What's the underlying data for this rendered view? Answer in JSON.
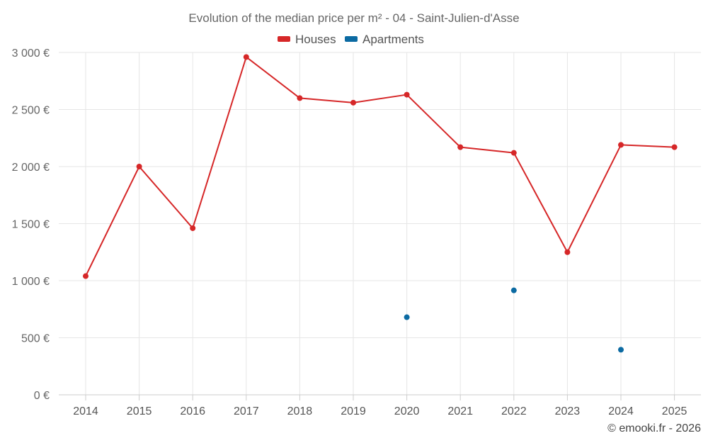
{
  "chart_data": {
    "type": "line",
    "title": "Evolution of the median price per m² - 04 - Saint-Julien-d'Asse",
    "categories": [
      "2014",
      "2015",
      "2016",
      "2017",
      "2018",
      "2019",
      "2020",
      "2021",
      "2022",
      "2023",
      "2024",
      "2025"
    ],
    "series": [
      {
        "name": "Houses",
        "color": "#d62728",
        "values": [
          1040,
          2000,
          1460,
          2960,
          2600,
          2560,
          2630,
          2170,
          2120,
          1250,
          2190,
          2170
        ]
      },
      {
        "name": "Apartments",
        "color": "#0b6aa2",
        "values": [
          null,
          null,
          null,
          null,
          null,
          null,
          680,
          null,
          915,
          null,
          395,
          null
        ]
      }
    ],
    "y_ticks": [
      0,
      500,
      1000,
      1500,
      2000,
      2500,
      3000
    ],
    "y_tick_labels": [
      "0 €",
      "500 €",
      "1 000 €",
      "1 500 €",
      "2 000 €",
      "2 500 €",
      "3 000 €"
    ],
    "ylim": [
      0,
      3000
    ],
    "xlabel": "",
    "ylabel": "",
    "grid": true,
    "legend": "top-center"
  },
  "credit": "© emooki.fr - 2026"
}
